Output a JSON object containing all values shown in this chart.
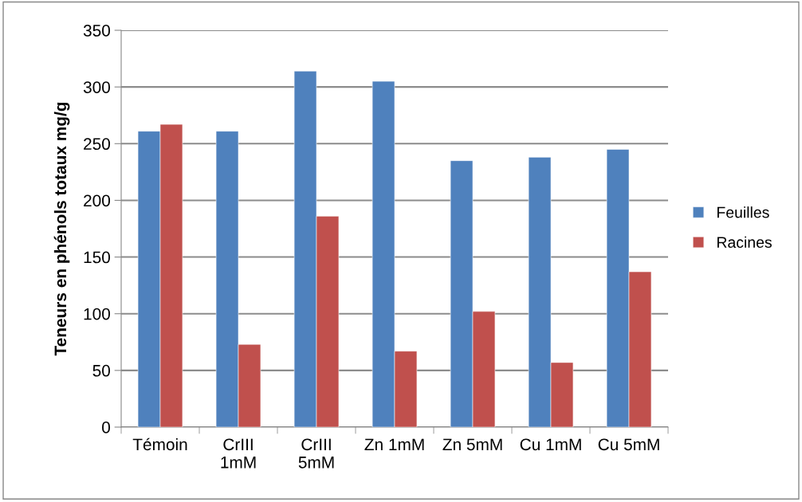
{
  "chart_data": {
    "type": "bar",
    "ylabel": "Teneurs en phénols totaux mg/g",
    "categories": [
      "Témoin",
      "CrIII\n1mM",
      "CrIII\n5mM",
      "Zn 1mM",
      "Zn 5mM",
      "Cu 1mM",
      "Cu 5mM"
    ],
    "series": [
      {
        "name": "Feuilles",
        "color": "#4f81bd",
        "values": [
          261,
          261,
          314,
          305,
          235,
          238,
          245
        ]
      },
      {
        "name": "Racines",
        "color": "#c0504d",
        "values": [
          267,
          73,
          186,
          67,
          102,
          57,
          137
        ]
      }
    ],
    "ylim": [
      0,
      350
    ],
    "yticks": [
      0,
      50,
      100,
      150,
      200,
      250,
      300,
      350
    ],
    "grid": "y",
    "legend": "right"
  }
}
